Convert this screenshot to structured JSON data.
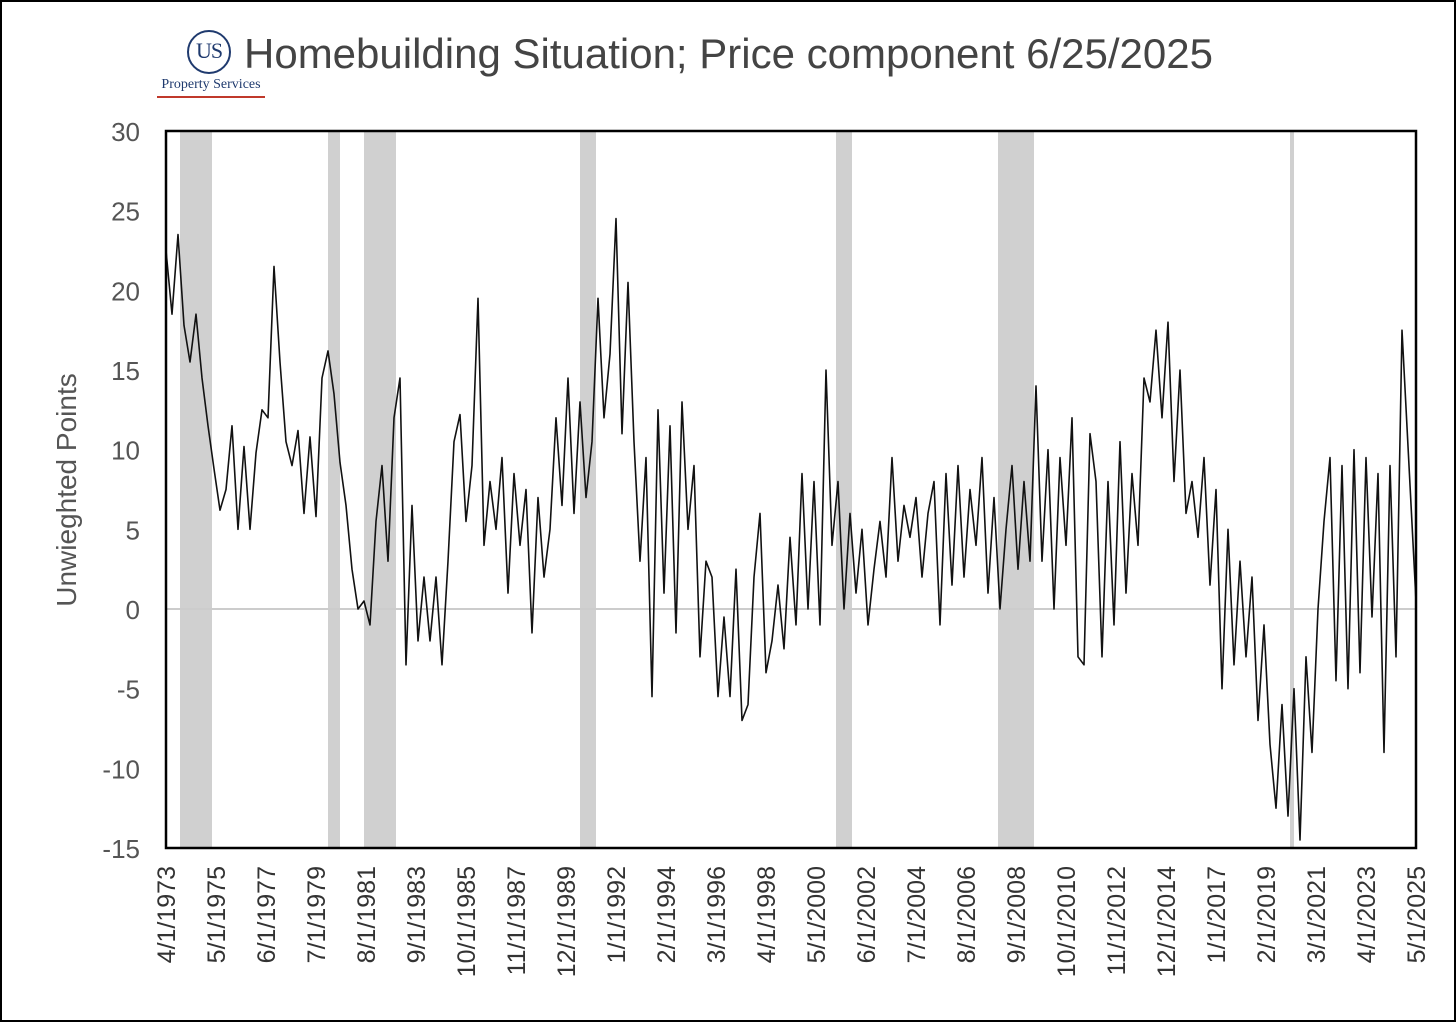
{
  "logo": {
    "letters": "US",
    "name": "Property Services",
    "color": "#1f3a6e"
  },
  "chart_data": {
    "type": "line",
    "title": "Homebuilding Situation; Price component 6/25/2025",
    "xlabel": "",
    "ylabel": "Unwieghted Points",
    "ylim": [
      -15,
      30
    ],
    "yticks": [
      -15,
      -10,
      -5,
      0,
      5,
      10,
      15,
      20,
      25,
      30
    ],
    "xlim": [
      "1973-04",
      "2025-05"
    ],
    "xtick_labels": [
      "4/1/1973",
      "5/1/1975",
      "6/1/1977",
      "7/1/1979",
      "8/1/1981",
      "9/1/1983",
      "10/1/1985",
      "11/1/1987",
      "12/1/1989",
      "1/1/1992",
      "2/1/1994",
      "3/1/1996",
      "4/1/1998",
      "5/1/2000",
      "6/1/2002",
      "7/1/2004",
      "8/1/2006",
      "9/1/2008",
      "10/1/2010",
      "11/1/2012",
      "12/1/2014",
      "1/1/2017",
      "2/1/2019",
      "3/1/2021",
      "4/1/2023",
      "5/1/2025"
    ],
    "grid": false,
    "zero_line": true,
    "line_color": "#111111",
    "shading_color": "#d0d0d0",
    "recession_bands": [
      [
        "1973-11",
        "1975-03"
      ],
      [
        "1980-01",
        "1980-07"
      ],
      [
        "1981-07",
        "1982-11"
      ],
      [
        "1990-07",
        "1991-03"
      ],
      [
        "2001-03",
        "2001-11"
      ],
      [
        "2007-12",
        "2009-06"
      ],
      [
        "2020-02",
        "2020-04"
      ]
    ],
    "series": [
      {
        "points": [
          [
            "1973-04",
            22.5
          ],
          [
            "1973-07",
            18.5
          ],
          [
            "1973-10",
            23.5
          ],
          [
            "1974-01",
            17.8
          ],
          [
            "1974-04",
            15.5
          ],
          [
            "1974-07",
            18.5
          ],
          [
            "1974-10",
            14.5
          ],
          [
            "1975-01",
            11.5
          ],
          [
            "1975-04",
            8.8
          ],
          [
            "1975-07",
            6.2
          ],
          [
            "1975-10",
            7.5
          ],
          [
            "1976-01",
            11.5
          ],
          [
            "1976-04",
            5.0
          ],
          [
            "1976-07",
            10.2
          ],
          [
            "1976-10",
            5.0
          ],
          [
            "1977-01",
            9.8
          ],
          [
            "1977-04",
            12.5
          ],
          [
            "1977-07",
            12.0
          ],
          [
            "1977-10",
            21.5
          ],
          [
            "1978-01",
            15.5
          ],
          [
            "1978-04",
            10.5
          ],
          [
            "1978-07",
            9.0
          ],
          [
            "1978-10",
            11.2
          ],
          [
            "1979-01",
            6.0
          ],
          [
            "1979-04",
            10.8
          ],
          [
            "1979-07",
            5.8
          ],
          [
            "1979-10",
            14.5
          ],
          [
            "1980-01",
            16.2
          ],
          [
            "1980-04",
            13.5
          ],
          [
            "1980-07",
            9.2
          ],
          [
            "1980-10",
            6.5
          ],
          [
            "1981-01",
            2.5
          ],
          [
            "1981-04",
            0.0
          ],
          [
            "1981-07",
            0.5
          ],
          [
            "1981-10",
            -1.0
          ],
          [
            "1982-01",
            5.5
          ],
          [
            "1982-04",
            9.0
          ],
          [
            "1982-07",
            3.0
          ],
          [
            "1982-10",
            12.0
          ],
          [
            "1983-01",
            14.5
          ],
          [
            "1983-04",
            -3.5
          ],
          [
            "1983-07",
            6.5
          ],
          [
            "1983-10",
            -2.0
          ],
          [
            "1984-01",
            2.0
          ],
          [
            "1984-04",
            -2.0
          ],
          [
            "1984-07",
            2.0
          ],
          [
            "1984-10",
            -3.5
          ],
          [
            "1985-01",
            3.0
          ],
          [
            "1985-04",
            10.5
          ],
          [
            "1985-07",
            12.2
          ],
          [
            "1985-10",
            5.5
          ],
          [
            "1986-01",
            9.0
          ],
          [
            "1986-04",
            19.5
          ],
          [
            "1986-07",
            4.0
          ],
          [
            "1986-10",
            8.0
          ],
          [
            "1987-01",
            5.0
          ],
          [
            "1987-04",
            9.5
          ],
          [
            "1987-07",
            1.0
          ],
          [
            "1987-10",
            8.5
          ],
          [
            "1988-01",
            4.0
          ],
          [
            "1988-04",
            7.5
          ],
          [
            "1988-07",
            -1.5
          ],
          [
            "1988-10",
            7.0
          ],
          [
            "1989-01",
            2.0
          ],
          [
            "1989-04",
            5.0
          ],
          [
            "1989-07",
            12.0
          ],
          [
            "1989-10",
            6.5
          ],
          [
            "1990-01",
            14.5
          ],
          [
            "1990-04",
            6.0
          ],
          [
            "1990-07",
            13.0
          ],
          [
            "1990-10",
            7.0
          ],
          [
            "1991-01",
            10.5
          ],
          [
            "1991-04",
            19.5
          ],
          [
            "1991-07",
            12.0
          ],
          [
            "1991-10",
            16.0
          ],
          [
            "1992-01",
            24.5
          ],
          [
            "1992-04",
            11.0
          ],
          [
            "1992-07",
            20.5
          ],
          [
            "1992-10",
            10.5
          ],
          [
            "1993-01",
            3.0
          ],
          [
            "1993-04",
            9.5
          ],
          [
            "1993-07",
            -5.5
          ],
          [
            "1993-10",
            12.5
          ],
          [
            "1994-01",
            1.0
          ],
          [
            "1994-04",
            11.5
          ],
          [
            "1994-07",
            -1.5
          ],
          [
            "1994-10",
            13.0
          ],
          [
            "1995-01",
            5.0
          ],
          [
            "1995-04",
            9.0
          ],
          [
            "1995-07",
            -3.0
          ],
          [
            "1995-10",
            3.0
          ],
          [
            "1996-01",
            2.0
          ],
          [
            "1996-04",
            -5.5
          ],
          [
            "1996-07",
            -0.5
          ],
          [
            "1996-10",
            -5.5
          ],
          [
            "1997-01",
            2.5
          ],
          [
            "1997-04",
            -7.0
          ],
          [
            "1997-07",
            -6.0
          ],
          [
            "1997-10",
            2.0
          ],
          [
            "1998-01",
            6.0
          ],
          [
            "1998-04",
            -4.0
          ],
          [
            "1998-07",
            -2.0
          ],
          [
            "1998-10",
            1.5
          ],
          [
            "1999-01",
            -2.5
          ],
          [
            "1999-04",
            4.5
          ],
          [
            "1999-07",
            -1.0
          ],
          [
            "1999-10",
            8.5
          ],
          [
            "2000-01",
            0.0
          ],
          [
            "2000-04",
            8.0
          ],
          [
            "2000-07",
            -1.0
          ],
          [
            "2000-10",
            15.0
          ],
          [
            "2001-01",
            4.0
          ],
          [
            "2001-04",
            8.0
          ],
          [
            "2001-07",
            0.0
          ],
          [
            "2001-10",
            6.0
          ],
          [
            "2002-01",
            1.0
          ],
          [
            "2002-04",
            5.0
          ],
          [
            "2002-07",
            -1.0
          ],
          [
            "2002-10",
            2.5
          ],
          [
            "2003-01",
            5.5
          ],
          [
            "2003-04",
            2.0
          ],
          [
            "2003-07",
            9.5
          ],
          [
            "2003-10",
            3.0
          ],
          [
            "2004-01",
            6.5
          ],
          [
            "2004-04",
            4.5
          ],
          [
            "2004-07",
            7.0
          ],
          [
            "2004-10",
            2.0
          ],
          [
            "2005-01",
            6.0
          ],
          [
            "2005-04",
            8.0
          ],
          [
            "2005-07",
            -1.0
          ],
          [
            "2005-10",
            8.5
          ],
          [
            "2006-01",
            1.5
          ],
          [
            "2006-04",
            9.0
          ],
          [
            "2006-07",
            2.0
          ],
          [
            "2006-10",
            7.5
          ],
          [
            "2007-01",
            4.0
          ],
          [
            "2007-04",
            9.5
          ],
          [
            "2007-07",
            1.0
          ],
          [
            "2007-10",
            7.0
          ],
          [
            "2008-01",
            0.0
          ],
          [
            "2008-04",
            5.0
          ],
          [
            "2008-07",
            9.0
          ],
          [
            "2008-10",
            2.5
          ],
          [
            "2009-01",
            8.0
          ],
          [
            "2009-04",
            3.0
          ],
          [
            "2009-07",
            14.0
          ],
          [
            "2009-10",
            3.0
          ],
          [
            "2010-01",
            10.0
          ],
          [
            "2010-04",
            0.0
          ],
          [
            "2010-07",
            9.5
          ],
          [
            "2010-10",
            4.0
          ],
          [
            "2011-01",
            12.0
          ],
          [
            "2011-04",
            -3.0
          ],
          [
            "2011-07",
            -3.5
          ],
          [
            "2011-10",
            11.0
          ],
          [
            "2012-01",
            8.0
          ],
          [
            "2012-04",
            -3.0
          ],
          [
            "2012-07",
            8.0
          ],
          [
            "2012-10",
            -1.0
          ],
          [
            "2013-01",
            10.5
          ],
          [
            "2013-04",
            1.0
          ],
          [
            "2013-07",
            8.5
          ],
          [
            "2013-10",
            4.0
          ],
          [
            "2014-01",
            14.5
          ],
          [
            "2014-04",
            13.0
          ],
          [
            "2014-07",
            17.5
          ],
          [
            "2014-10",
            12.0
          ],
          [
            "2015-01",
            18.0
          ],
          [
            "2015-04",
            8.0
          ],
          [
            "2015-07",
            15.0
          ],
          [
            "2015-10",
            6.0
          ],
          [
            "2016-01",
            8.0
          ],
          [
            "2016-04",
            4.5
          ],
          [
            "2016-07",
            9.5
          ],
          [
            "2016-10",
            1.5
          ],
          [
            "2017-01",
            7.5
          ],
          [
            "2017-04",
            -5.0
          ],
          [
            "2017-07",
            5.0
          ],
          [
            "2017-10",
            -3.5
          ],
          [
            "2018-01",
            3.0
          ],
          [
            "2018-04",
            -3.0
          ],
          [
            "2018-07",
            2.0
          ],
          [
            "2018-10",
            -7.0
          ],
          [
            "2019-01",
            -1.0
          ],
          [
            "2019-04",
            -8.5
          ],
          [
            "2019-07",
            -12.5
          ],
          [
            "2019-10",
            -6.0
          ],
          [
            "2020-01",
            -13.0
          ],
          [
            "2020-04",
            -5.0
          ],
          [
            "2020-07",
            -14.5
          ],
          [
            "2020-10",
            -3.0
          ],
          [
            "2021-01",
            -9.0
          ],
          [
            "2021-04",
            0.0
          ],
          [
            "2021-07",
            5.5
          ],
          [
            "2021-10",
            9.5
          ],
          [
            "2022-01",
            -4.5
          ],
          [
            "2022-04",
            9.0
          ],
          [
            "2022-07",
            -5.0
          ],
          [
            "2022-10",
            10.0
          ],
          [
            "2023-01",
            -4.0
          ],
          [
            "2023-04",
            9.5
          ],
          [
            "2023-07",
            -0.5
          ],
          [
            "2023-10",
            8.5
          ],
          [
            "2024-01",
            -9.0
          ],
          [
            "2024-04",
            9.0
          ],
          [
            "2024-07",
            -3.0
          ],
          [
            "2024-10",
            17.5
          ],
          [
            "2025-05",
            0.5
          ]
        ]
      }
    ]
  }
}
